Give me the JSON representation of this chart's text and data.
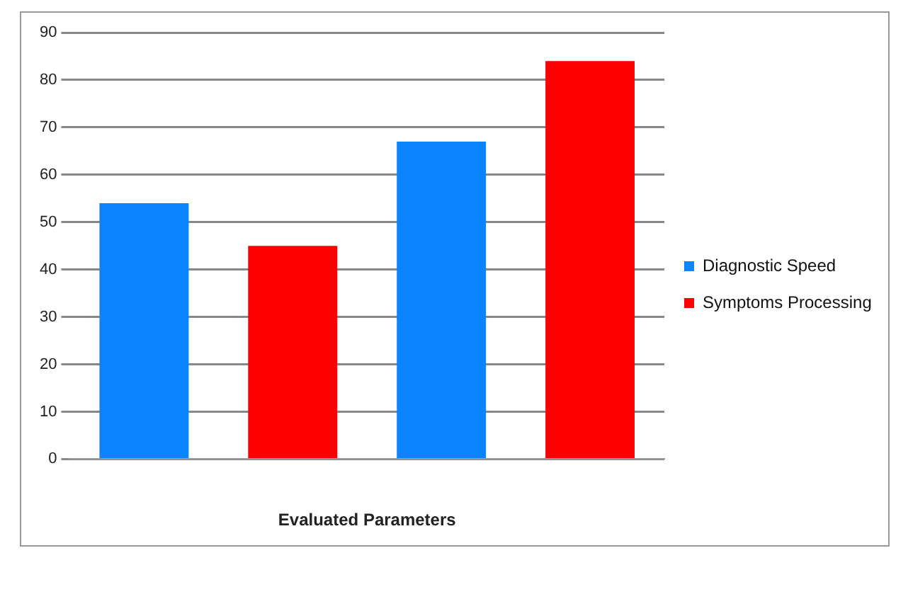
{
  "chart_data": {
    "type": "bar",
    "xlabel": "Evaluated Parameters",
    "categories": [
      null,
      null
    ],
    "series": [
      {
        "name": "Diagnostic Speed",
        "color": "#0a84ff",
        "values": [
          54,
          67
        ]
      },
      {
        "name": "Symptoms Processing",
        "color": "#ff0000",
        "values": [
          45,
          84
        ]
      }
    ],
    "ylim": [
      0,
      90
    ],
    "yticks": [
      0,
      10,
      20,
      30,
      40,
      50,
      60,
      70,
      80,
      90
    ],
    "grid": "y",
    "legend": "right"
  }
}
